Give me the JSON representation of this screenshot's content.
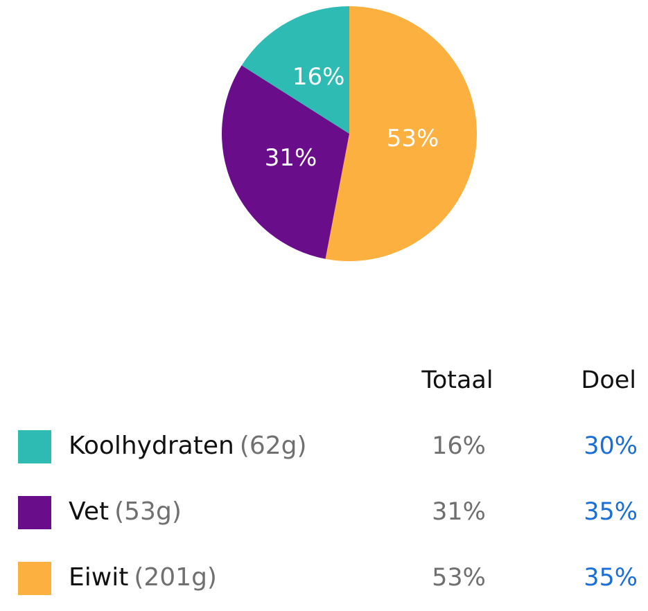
{
  "chart_data": {
    "type": "pie",
    "values": [
      53,
      31,
      16
    ],
    "value_labels": [
      "53%",
      "31%",
      "16%"
    ],
    "colors": [
      "#fbb040",
      "#6a0d8a",
      "#2ebbb3"
    ]
  },
  "table": {
    "headers": [
      "Totaal",
      "Doel"
    ],
    "rows": [
      {
        "color": "#2ebbb3",
        "name": "Koolhydraten",
        "amount": "(62g)",
        "total": "16%",
        "goal": "30%"
      },
      {
        "color": "#6a0d8a",
        "name": "Vet",
        "amount": "(53g)",
        "total": "31%",
        "goal": "35%"
      },
      {
        "color": "#fbb040",
        "name": "Eiwit",
        "amount": "(201g)",
        "total": "53%",
        "goal": "35%"
      }
    ]
  }
}
